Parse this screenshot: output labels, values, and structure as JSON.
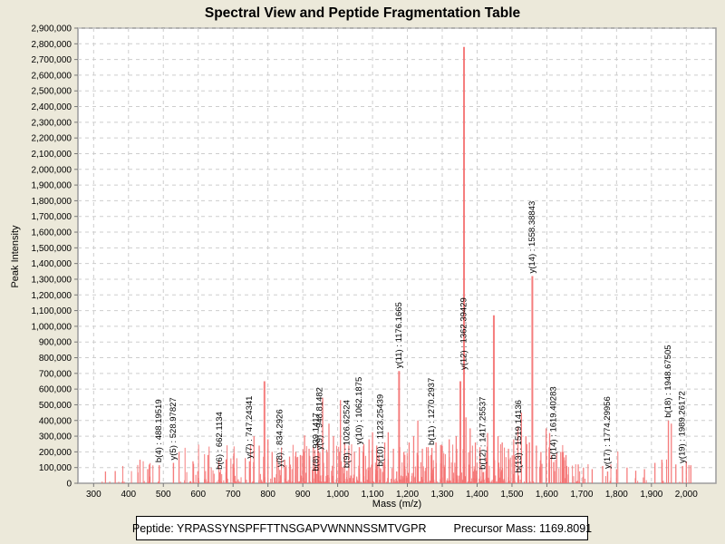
{
  "title": "Spectral View and Peptide Fragmentation Table",
  "y_axis": {
    "label": "Peak Intensity"
  },
  "x_axis": {
    "label": "Mass (m/z)"
  },
  "footer": {
    "peptide": "Peptide: YRPASSYNSPFFTTNSGAPVWNNNSSMTVGPR",
    "precursor": "Precursor Mass: 1169.8091"
  },
  "colors": {
    "background": "#ece9da",
    "plot_background": "#ffffff",
    "plot_border": "#9c9c9c",
    "grid": "#cdcdcd",
    "peak": "#f47070",
    "tick": "#777777",
    "text": "#000000"
  },
  "chart_data": {
    "type": "bar",
    "title": "Spectral View and Peptide Fragmentation Table",
    "xlabel": "Mass (m/z)",
    "ylabel": "Peak Intensity",
    "xlim": [
      255,
      2085
    ],
    "ylim": [
      0,
      2900000
    ],
    "x_ticks": [
      300,
      400,
      500,
      600,
      700,
      800,
      900,
      1000,
      1100,
      1200,
      1300,
      1400,
      1500,
      1600,
      1700,
      1800,
      1900,
      2000
    ],
    "y_ticks": {
      "min": 0,
      "max": 2900000,
      "step": 100000
    },
    "grid": true,
    "annotated_peaks": [
      {
        "label": "b(4) : 488.19519",
        "mz": 488.19519,
        "intensity": 115000
      },
      {
        "label": "y(5) : 528.97827",
        "mz": 528.97827,
        "intensity": 130000
      },
      {
        "label": "b(6) : 662.1134",
        "mz": 662.1134,
        "intensity": 70000
      },
      {
        "label": "y(7) : 747.24341",
        "mz": 747.24341,
        "intensity": 140000
      },
      {
        "label": "y(8) : 834.2926",
        "mz": 834.2926,
        "intensity": 85000
      },
      {
        "label": "b(8) : 939.1417",
        "mz": 939.1417,
        "intensity": 60000
      },
      {
        "label": "y(9) : 948.81482",
        "mz": 948.81482,
        "intensity": 195000
      },
      {
        "label": "b(9) : 1026.62524",
        "mz": 1026.62524,
        "intensity": 80000
      },
      {
        "label": "y(10) : 1062.1875",
        "mz": 1062.1875,
        "intensity": 230000
      },
      {
        "label": "b(10) : 1123.25439",
        "mz": 1123.25439,
        "intensity": 90000
      },
      {
        "label": "y(11) : 1176.1665",
        "mz": 1176.1665,
        "intensity": 715000
      },
      {
        "label": "b(11) : 1270.2937",
        "mz": 1270.2937,
        "intensity": 225000
      },
      {
        "label": "y(12) : 1362.39429",
        "mz": 1362.39429,
        "intensity": 2780000
      },
      {
        "label": "b(12) : 1417.25537",
        "mz": 1417.25537,
        "intensity": 70000
      },
      {
        "label": "b(13) : 1519.14136",
        "mz": 1519.14136,
        "intensity": 50000
      },
      {
        "label": "y(14) : 1558.38843",
        "mz": 1558.38843,
        "intensity": 1320000
      },
      {
        "label": "b(14) : 1619.40283",
        "mz": 1619.40283,
        "intensity": 135000
      },
      {
        "label": "y(17) : 1774.29956",
        "mz": 1774.29956,
        "intensity": 75000
      },
      {
        "label": "b(18) : 1948.67505",
        "mz": 1948.67505,
        "intensity": 400000
      },
      {
        "label": "y(19) : 1989.26172",
        "mz": 1989.26172,
        "intensity": 110000
      }
    ],
    "major_peaks": [
      [
        334,
        75000
      ],
      [
        362,
        78000
      ],
      [
        433,
        150000
      ],
      [
        455,
        90000
      ],
      [
        545,
        200000
      ],
      [
        585,
        140000
      ],
      [
        628,
        180000
      ],
      [
        680,
        150000
      ],
      [
        702,
        190000
      ],
      [
        735,
        160000
      ],
      [
        760,
        300000
      ],
      [
        775,
        240000
      ],
      [
        790,
        650000
      ],
      [
        800,
        280000
      ],
      [
        812,
        200000
      ],
      [
        826,
        160000
      ],
      [
        848,
        150000
      ],
      [
        862,
        170000
      ],
      [
        880,
        200000
      ],
      [
        893,
        180000
      ],
      [
        905,
        305000
      ],
      [
        918,
        220000
      ],
      [
        930,
        230000
      ],
      [
        943,
        260000
      ],
      [
        957,
        545000
      ],
      [
        975,
        380000
      ],
      [
        988,
        300000
      ],
      [
        1008,
        530000
      ],
      [
        1020,
        260000
      ],
      [
        1032,
        240000
      ],
      [
        1048,
        200000
      ],
      [
        1075,
        250000
      ],
      [
        1090,
        280000
      ],
      [
        1100,
        325000
      ],
      [
        1112,
        240000
      ],
      [
        1135,
        260000
      ],
      [
        1145,
        325000
      ],
      [
        1160,
        220000
      ],
      [
        1190,
        200000
      ],
      [
        1205,
        260000
      ],
      [
        1218,
        300000
      ],
      [
        1230,
        400000
      ],
      [
        1243,
        220000
      ],
      [
        1255,
        230000
      ],
      [
        1268,
        180000
      ],
      [
        1282,
        260000
      ],
      [
        1300,
        240000
      ],
      [
        1320,
        280000
      ],
      [
        1340,
        300000
      ],
      [
        1352,
        650000
      ],
      [
        1368,
        420000
      ],
      [
        1380,
        350000
      ],
      [
        1395,
        260000
      ],
      [
        1408,
        230000
      ],
      [
        1430,
        320000
      ],
      [
        1448,
        1070000
      ],
      [
        1460,
        300000
      ],
      [
        1472,
        260000
      ],
      [
        1490,
        220000
      ],
      [
        1505,
        280000
      ],
      [
        1517,
        360000
      ],
      [
        1527,
        450000
      ],
      [
        1540,
        300000
      ],
      [
        1550,
        260000
      ],
      [
        1570,
        240000
      ],
      [
        1583,
        200000
      ],
      [
        1598,
        350000
      ],
      [
        1608,
        320000
      ],
      [
        1640,
        200000
      ],
      [
        1655,
        180000
      ],
      [
        1690,
        120000
      ],
      [
        1705,
        100000
      ],
      [
        1730,
        90000
      ],
      [
        1760,
        110000
      ],
      [
        1800,
        90000
      ],
      [
        1830,
        100000
      ],
      [
        1855,
        80000
      ],
      [
        1880,
        90000
      ],
      [
        1910,
        130000
      ],
      [
        1930,
        150000
      ],
      [
        1957,
        380000
      ],
      [
        1970,
        120000
      ],
      [
        2000,
        140000
      ],
      [
        2013,
        115000
      ]
    ],
    "noise": {
      "seed": 7,
      "count": 520,
      "mz_min": 320,
      "mz_max": 2010,
      "max_intensity": 240000
    }
  }
}
